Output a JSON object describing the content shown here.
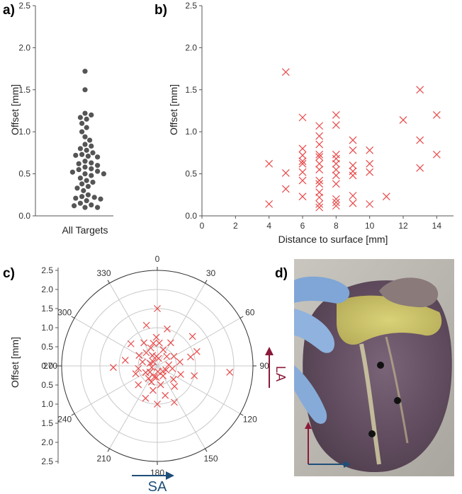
{
  "panels": {
    "a": "a)",
    "b": "b)",
    "c": "c)",
    "d": "d)"
  },
  "colors": {
    "dots": "#555555",
    "crosses": "#e84a4a",
    "la_arrow": "#8b1a3a",
    "sa_arrow": "#1f4e79",
    "tissue": "#6b5666"
  },
  "chart_data": [
    {
      "id": "a",
      "type": "scatter",
      "title": "",
      "xlabel": "All Targets",
      "ylabel": "Offset [mm]",
      "ylim": [
        0,
        2.5
      ],
      "yticks": [
        "0.0",
        "0.5",
        "1.0",
        "1.5",
        "2.0",
        "2.5"
      ],
      "values": [
        1.72,
        1.5,
        1.22,
        1.2,
        1.17,
        1.15,
        1.1,
        1.05,
        1.0,
        0.94,
        0.9,
        0.85,
        0.83,
        0.8,
        0.78,
        0.75,
        0.73,
        0.72,
        0.71,
        0.7,
        0.65,
        0.63,
        0.62,
        0.6,
        0.58,
        0.56,
        0.55,
        0.53,
        0.52,
        0.5,
        0.5,
        0.48,
        0.45,
        0.42,
        0.4,
        0.38,
        0.35,
        0.33,
        0.3,
        0.25,
        0.23,
        0.22,
        0.21,
        0.2,
        0.18,
        0.15,
        0.13,
        0.12,
        0.1,
        0.1
      ]
    },
    {
      "id": "b",
      "type": "scatter",
      "xlabel": "Distance to surface [mm]",
      "ylabel": "Offset [mm]",
      "xlim": [
        0,
        15
      ],
      "ylim": [
        0,
        2.5
      ],
      "xticks": [
        "0",
        "2",
        "4",
        "6",
        "8",
        "10",
        "12",
        "14"
      ],
      "yticks": [
        "0.0",
        "0.5",
        "1.0",
        "1.5",
        "2.0",
        "2.5"
      ],
      "points": [
        [
          4,
          0.62
        ],
        [
          4,
          0.14
        ],
        [
          5,
          1.71
        ],
        [
          5,
          0.51
        ],
        [
          5,
          0.32
        ],
        [
          6,
          1.17
        ],
        [
          6,
          0.8
        ],
        [
          6,
          0.72
        ],
        [
          6,
          0.65
        ],
        [
          6,
          0.62
        ],
        [
          6,
          0.52
        ],
        [
          6,
          0.42
        ],
        [
          6,
          0.23
        ],
        [
          7,
          1.07
        ],
        [
          7,
          0.95
        ],
        [
          7,
          0.85
        ],
        [
          7,
          0.73
        ],
        [
          7,
          0.7
        ],
        [
          7,
          0.62
        ],
        [
          7,
          0.55
        ],
        [
          7,
          0.42
        ],
        [
          7,
          0.38
        ],
        [
          7,
          0.28
        ],
        [
          7,
          0.22
        ],
        [
          7,
          0.14
        ],
        [
          7,
          0.1
        ],
        [
          8,
          1.2
        ],
        [
          8,
          1.08
        ],
        [
          8,
          0.73
        ],
        [
          8,
          0.68
        ],
        [
          8,
          0.62
        ],
        [
          8,
          0.55
        ],
        [
          8,
          0.48
        ],
        [
          8,
          0.38
        ],
        [
          8,
          0.2
        ],
        [
          8,
          0.16
        ],
        [
          8,
          0.12
        ],
        [
          9,
          0.9
        ],
        [
          9,
          0.78
        ],
        [
          9,
          0.6
        ],
        [
          9,
          0.53
        ],
        [
          9,
          0.48
        ],
        [
          9,
          0.24
        ],
        [
          9,
          0.15
        ],
        [
          10,
          0.78
        ],
        [
          10,
          0.62
        ],
        [
          10,
          0.52
        ],
        [
          10,
          0.14
        ],
        [
          11,
          0.23
        ],
        [
          12,
          1.14
        ],
        [
          13,
          1.5
        ],
        [
          13,
          0.9
        ],
        [
          13,
          0.57
        ],
        [
          14,
          1.2
        ],
        [
          14,
          0.73
        ]
      ]
    },
    {
      "id": "c",
      "type": "scatter",
      "subtype": "polar",
      "ylabel": "Offset [mm]",
      "rlim": [
        0,
        2.5
      ],
      "radial_ticks_top": [
        "2.5",
        "2.0",
        "1.5",
        "1.0",
        "0.5",
        "0.0"
      ],
      "radial_ticks_bottom": [
        "0.5",
        "1.0",
        "1.5",
        "2.0",
        "2.5"
      ],
      "angle_labels": [
        "0",
        "30",
        "60",
        "90",
        "120",
        "150",
        "180",
        "210",
        "240",
        "270",
        "300",
        "330"
      ],
      "arrow_labels": {
        "la": "LA",
        "sa": "SA"
      },
      "points_theta_r": [
        [
          0,
          1.5
        ],
        [
          358,
          0.75
        ],
        [
          5,
          0.6
        ],
        [
          20,
          0.45
        ],
        [
          45,
          0.35
        ],
        [
          60,
          0.5
        ],
        [
          80,
          0.6
        ],
        [
          85,
          0.3
        ],
        [
          100,
          0.4
        ],
        [
          110,
          0.65
        ],
        [
          130,
          0.55
        ],
        [
          140,
          0.7
        ],
        [
          150,
          0.3
        ],
        [
          165,
          0.8
        ],
        [
          170,
          0.5
        ],
        [
          185,
          0.3
        ],
        [
          180,
          1.0
        ],
        [
          190,
          0.65
        ],
        [
          200,
          0.45
        ],
        [
          215,
          0.4
        ],
        [
          230,
          0.25
        ],
        [
          250,
          0.6
        ],
        [
          262,
          0.5
        ],
        [
          268,
          1.15
        ],
        [
          280,
          0.85
        ],
        [
          300,
          0.55
        ],
        [
          310,
          0.9
        ],
        [
          320,
          0.45
        ],
        [
          335,
          0.3
        ],
        [
          345,
          1.1
        ],
        [
          350,
          0.6
        ],
        [
          10,
          0.2
        ],
        [
          30,
          0.7
        ],
        [
          70,
          1.1
        ],
        [
          95,
          1.9
        ],
        [
          75,
          0.9
        ],
        [
          115,
          0.25
        ],
        [
          175,
          0.15
        ],
        [
          200,
          0.9
        ],
        [
          225,
          0.7
        ],
        [
          240,
          0.35
        ],
        [
          290,
          0.2
        ],
        [
          330,
          0.7
        ],
        [
          355,
          0.25
        ],
        [
          15,
          1.0
        ],
        [
          50,
          1.2
        ],
        [
          105,
          1.0
        ],
        [
          135,
          0.2
        ],
        [
          155,
          1.05
        ],
        [
          195,
          0.3
        ],
        [
          255,
          0.15
        ],
        [
          285,
          0.4
        ],
        [
          315,
          0.15
        ],
        [
          340,
          0.5
        ]
      ]
    }
  ]
}
